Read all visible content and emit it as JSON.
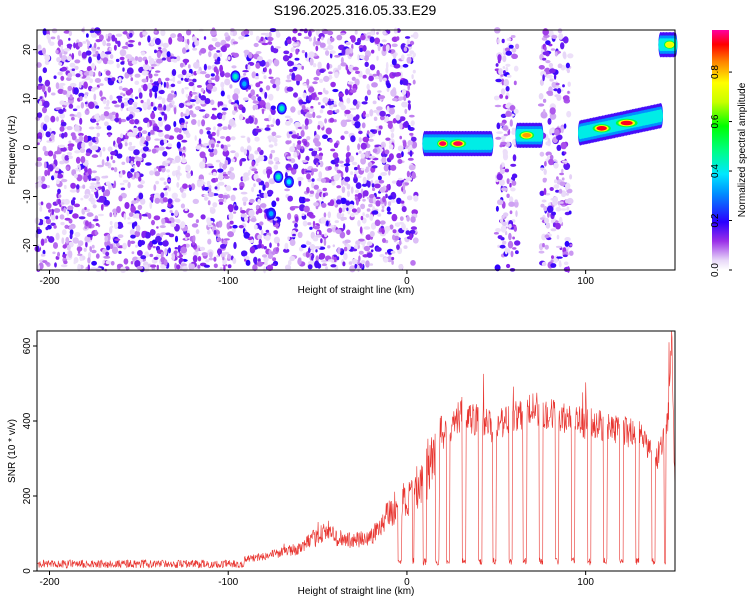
{
  "title": "S196.2025.316.05.33.E29",
  "chart_data": [
    {
      "type": "heatmap",
      "xlabel": "Height of straight line (km)",
      "ylabel": "Frequency (Hz)",
      "xlim": [
        -207,
        150
      ],
      "ylim": [
        -25,
        24
      ],
      "xticks": [
        "-200",
        "-100",
        "0",
        "100"
      ],
      "xtick_values": [
        -200,
        -100,
        0,
        100
      ],
      "yticks": [
        "20",
        "10",
        "0",
        "-10",
        "-20"
      ],
      "ytick_values": [
        20,
        10,
        0,
        -10,
        -20
      ],
      "colorbar": {
        "label": "Normalized spectral amplitude",
        "ticks": [
          "0.0",
          "0.2",
          "0.4",
          "0.6",
          "0.8"
        ],
        "tick_values": [
          0.0,
          0.2,
          0.4,
          0.6,
          0.8
        ],
        "range": [
          0,
          0.97
        ]
      },
      "noise_regions": [
        [
          -207,
          -95
        ],
        [
          -93,
          -72
        ],
        [
          -68,
          5
        ],
        [
          50,
          62
        ],
        [
          75,
          92
        ]
      ],
      "blank_regions": [
        [
          -72,
          -68
        ],
        [
          5,
          9
        ],
        [
          45,
          50
        ],
        [
          62,
          66
        ],
        [
          92,
          97
        ]
      ],
      "tracks": [
        {
          "x": [
            10,
            47
          ],
          "freq": 0.8,
          "peak": 0.97,
          "hot": [
            [
              18,
              22
            ],
            [
              25,
              32
            ]
          ]
        },
        {
          "x": [
            62,
            75
          ],
          "freq": 2.5,
          "peak": 0.85,
          "hot": [
            [
              64,
              70
            ]
          ]
        },
        {
          "x": [
            97,
            142
          ],
          "freq_start": 3.0,
          "freq_end": 6.5,
          "peak": 0.95,
          "hot": [
            [
              105,
              113
            ],
            [
              118,
              128
            ]
          ]
        },
        {
          "x": [
            142,
            150
          ],
          "freq": 21.0,
          "peak": 0.75,
          "hot": [
            [
              145,
              149
            ]
          ]
        }
      ],
      "blobs": [
        {
          "x": -96,
          "freq": 14.5,
          "amp": 0.45
        },
        {
          "x": -91,
          "freq": 13.0,
          "amp": 0.35
        },
        {
          "x": -70,
          "freq": 8.0,
          "amp": 0.45
        },
        {
          "x": -72,
          "freq": -6.0,
          "amp": 0.45
        },
        {
          "x": -66,
          "freq": -7.0,
          "amp": 0.4
        },
        {
          "x": -76,
          "freq": -13.5,
          "amp": 0.35
        }
      ]
    },
    {
      "type": "line",
      "xlabel": "Height of straight line (km)",
      "ylabel": "SNR (10 * v/v)",
      "xlim": [
        -207,
        150
      ],
      "ylim": [
        0,
        640
      ],
      "xticks": [
        "-200",
        "-100",
        "0",
        "100"
      ],
      "xtick_values": [
        -200,
        -100,
        0,
        100
      ],
      "yticks": [
        "600",
        "400",
        "200",
        "0"
      ],
      "ytick_values": [
        600,
        400,
        200,
        0
      ],
      "color": "#e8332e",
      "envelope": [
        [
          -207,
          20
        ],
        [
          -100,
          22
        ],
        [
          -80,
          40
        ],
        [
          -60,
          60
        ],
        [
          -45,
          110
        ],
        [
          -40,
          90
        ],
        [
          -30,
          80
        ],
        [
          -20,
          90
        ],
        [
          -10,
          160
        ],
        [
          0,
          190
        ],
        [
          10,
          250
        ],
        [
          20,
          340
        ],
        [
          30,
          420
        ],
        [
          50,
          380
        ],
        [
          70,
          440
        ],
        [
          90,
          400
        ],
        [
          110,
          390
        ],
        [
          130,
          360
        ],
        [
          140,
          300
        ],
        [
          146,
          400
        ],
        [
          148,
          640
        ],
        [
          150,
          200
        ]
      ],
      "dropouts": [
        [
          -5,
          -3
        ],
        [
          3,
          4
        ],
        [
          9,
          11
        ],
        [
          16,
          18
        ],
        [
          22,
          24
        ],
        [
          31,
          33
        ],
        [
          40,
          42
        ],
        [
          48,
          50
        ],
        [
          57,
          59
        ],
        [
          65,
          67
        ],
        [
          74,
          76
        ],
        [
          83,
          85
        ],
        [
          92,
          94
        ],
        [
          101,
          103
        ],
        [
          110,
          112
        ],
        [
          119,
          121
        ],
        [
          128,
          130
        ],
        [
          137,
          139
        ],
        [
          144,
          145
        ]
      ]
    }
  ]
}
